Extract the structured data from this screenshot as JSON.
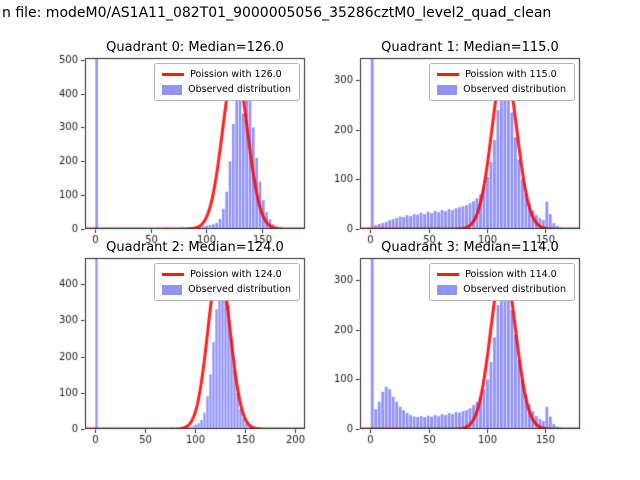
{
  "figure": {
    "suptitle": "n file: modeM0/AS1A11_082T01_9000005056_35286cztM0_level2_quad_clean"
  },
  "colors": {
    "bar": "#3b3bee",
    "bar_alpha": 0.55,
    "curve": "#ff0000",
    "curve_alpha": 0.88
  },
  "chart_data": [
    {
      "type": "bar",
      "title": "Quadrant 0: Median=126.0",
      "median": 126.0,
      "legend": [
        "Poission with 126.0",
        "Observed distribution"
      ],
      "xlim": [
        -9,
        189
      ],
      "ylim": [
        0,
        505
      ],
      "xticks": [
        0,
        50,
        100,
        150
      ],
      "yticks": [
        0,
        100,
        200,
        300,
        400,
        500
      ],
      "bin_start": 0,
      "bin_width": 3,
      "bin_counts": [
        1200,
        3,
        2,
        3,
        2,
        2,
        3,
        2,
        3,
        3,
        2,
        3,
        2,
        2,
        3,
        2,
        3,
        2,
        3,
        2,
        3,
        4,
        3,
        4,
        3,
        4,
        5,
        4,
        5,
        6,
        5,
        6,
        8,
        10,
        12,
        14,
        18,
        30,
        60,
        110,
        200,
        310,
        420,
        480,
        340,
        465,
        390,
        300,
        210,
        140,
        85,
        50,
        28,
        14,
        8,
        4,
        3,
        2,
        2,
        2
      ],
      "poisson": {
        "lambda": 126.0,
        "peak": 480
      }
    },
    {
      "type": "bar",
      "title": "Quadrant 1: Median=115.0",
      "median": 115.0,
      "legend": [
        "Poission with 115.0",
        "Observed distribution"
      ],
      "xlim": [
        -9,
        180
      ],
      "ylim": [
        0,
        345
      ],
      "xticks": [
        0,
        50,
        100,
        150
      ],
      "yticks": [
        0,
        100,
        200,
        300
      ],
      "bin_start": 0,
      "bin_width": 3,
      "bin_counts": [
        800,
        8,
        10,
        12,
        14,
        18,
        20,
        22,
        25,
        24,
        28,
        26,
        30,
        29,
        33,
        30,
        35,
        32,
        36,
        34,
        38,
        36,
        40,
        38,
        42,
        44,
        46,
        48,
        52,
        56,
        62,
        70,
        85,
        105,
        135,
        180,
        240,
        330,
        315,
        280,
        235,
        185,
        140,
        100,
        72,
        52,
        38,
        28,
        22,
        18,
        55,
        30,
        12,
        6,
        3,
        2,
        2,
        1,
        1,
        1
      ],
      "poisson": {
        "lambda": 115.0,
        "peak": 330
      }
    },
    {
      "type": "bar",
      "title": "Quadrant 2: Median=124.0",
      "median": 124.0,
      "legend": [
        "Poission with 124.0",
        "Observed distribution"
      ],
      "xlim": [
        -10,
        210
      ],
      "ylim": [
        0,
        472
      ],
      "xticks": [
        0,
        50,
        100,
        150,
        200
      ],
      "yticks": [
        0,
        100,
        200,
        300,
        400
      ],
      "bin_start": 0,
      "bin_width": 3,
      "bin_counts": [
        1100,
        3,
        2,
        2,
        3,
        2,
        2,
        3,
        2,
        3,
        2,
        2,
        3,
        2,
        2,
        3,
        2,
        3,
        2,
        2,
        3,
        3,
        2,
        3,
        3,
        4,
        3,
        4,
        4,
        5,
        5,
        6,
        8,
        12,
        16,
        25,
        45,
        90,
        150,
        240,
        330,
        450,
        425,
        410,
        340,
        250,
        165,
        100,
        55,
        30,
        16,
        9,
        5,
        3,
        2,
        2,
        1,
        1,
        1,
        1,
        1,
        1,
        1,
        1,
        2,
        1,
        1
      ],
      "poisson": {
        "lambda": 124.0,
        "peak": 450
      }
    },
    {
      "type": "bar",
      "title": "Quadrant 3: Median=114.0",
      "median": 114.0,
      "legend": [
        "Poission with 114.0",
        "Observed distribution"
      ],
      "xlim": [
        -9,
        180
      ],
      "ylim": [
        0,
        345
      ],
      "xticks": [
        0,
        50,
        100,
        150
      ],
      "yticks": [
        0,
        100,
        200,
        300
      ],
      "bin_start": 0,
      "bin_width": 3,
      "bin_counts": [
        800,
        40,
        55,
        75,
        85,
        80,
        65,
        55,
        45,
        38,
        32,
        28,
        25,
        24,
        26,
        24,
        27,
        25,
        28,
        26,
        30,
        28,
        32,
        30,
        34,
        33,
        36,
        38,
        42,
        48,
        55,
        65,
        80,
        100,
        135,
        185,
        250,
        320,
        310,
        285,
        240,
        190,
        140,
        100,
        70,
        50,
        36,
        26,
        20,
        16,
        45,
        25,
        10,
        5,
        3,
        2,
        1,
        1,
        1,
        1
      ],
      "poisson": {
        "lambda": 114.0,
        "peak": 330
      }
    }
  ]
}
